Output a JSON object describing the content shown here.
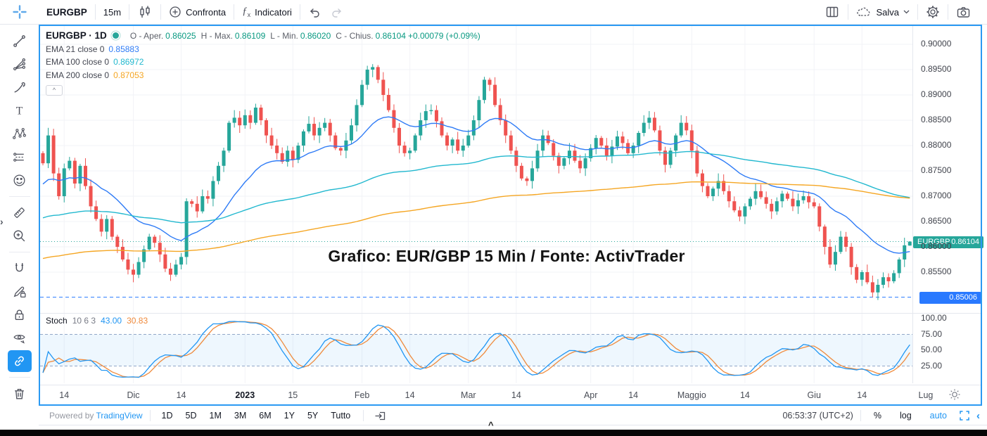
{
  "top_toolbar": {
    "symbol": "EURGBP",
    "interval": "15m",
    "compare": "Confronta",
    "indicators": "Indicatori",
    "save": "Salva"
  },
  "icons": {
    "top": [
      "crosshair-logo",
      "candles-interval",
      "compare-plus",
      "fx-indicators",
      "undo",
      "redo",
      "layout-grid",
      "cloud-save",
      "chevron-down",
      "settings-gear",
      "camera-snapshot"
    ],
    "left": [
      "trend-line",
      "fib-fan",
      "brush",
      "text-tool",
      "xabcd-pattern",
      "forecast-tools",
      "emoji",
      "ruler-measure",
      "zoom-in",
      "magnet",
      "drawing-edit-lock",
      "lock-all",
      "hide-drawings-eye",
      "sync-drawings-link",
      "trash"
    ],
    "misc": [
      "session-sun",
      "goto-date",
      "fullscreen-brackets",
      "collapse-chevron-left",
      "panel-expand-chevron-right",
      "legend-collapse-caret"
    ]
  },
  "chart": {
    "legend": {
      "symbol": "EURGBP",
      "sep": "·",
      "interval": "1D",
      "o_label": "O - Aper.",
      "o": "0.86025",
      "h_label": "H - Max.",
      "h": "0.86109",
      "l_label": "L - Min.",
      "l": "0.86020",
      "c_label": "C - Chius.",
      "c": "0.86104",
      "change": "+0.00079 (+0.09%)"
    },
    "emas": [
      {
        "label": "EMA 21 close 0",
        "value": "0.85883",
        "color": "#2e7bf6"
      },
      {
        "label": "EMA 100 close 0",
        "value": "0.86972",
        "color": "#22b8cf"
      },
      {
        "label": "EMA 200 close 0",
        "value": "0.87053",
        "color": "#f5a623"
      }
    ],
    "stoch_legend": {
      "name": "Stoch",
      "params": "10 6 3",
      "k": "43.00",
      "d": "30.83"
    },
    "collapse_caret": "^",
    "annotation": "Grafico: EUR/GBP 15 Min / Fonte: ActivTrader",
    "price_tag": {
      "symbol": "EURGBP",
      "value": "0.86104"
    },
    "alert_tag": {
      "value": "0.85006"
    },
    "stoch_axis": [
      "100.00",
      "75.00",
      "50.00",
      "25.00"
    ]
  },
  "chart_data": {
    "type": "candlestick",
    "symbol": "EURGBP",
    "interval": "1D",
    "ohlc_last": {
      "o": 0.86025,
      "h": 0.86109,
      "l": 0.8602,
      "c": 0.86104
    },
    "closes": [
      0.8765,
      0.882,
      0.8745,
      0.87,
      0.8755,
      0.877,
      0.8725,
      0.876,
      0.872,
      0.868,
      0.8655,
      0.863,
      0.8655,
      0.862,
      0.86,
      0.8575,
      0.8555,
      0.8545,
      0.857,
      0.8595,
      0.862,
      0.8608,
      0.8585,
      0.8557,
      0.8545,
      0.8565,
      0.858,
      0.869,
      0.8685,
      0.867,
      0.87,
      0.8695,
      0.873,
      0.876,
      0.879,
      0.8845,
      0.8855,
      0.884,
      0.886,
      0.8845,
      0.8875,
      0.885,
      0.882,
      0.88,
      0.8785,
      0.8768,
      0.879,
      0.8772,
      0.88,
      0.8828,
      0.8843,
      0.882,
      0.8835,
      0.8845,
      0.882,
      0.8795,
      0.879,
      0.881,
      0.884,
      0.888,
      0.892,
      0.895,
      0.8955,
      0.893,
      0.89,
      0.887,
      0.8835,
      0.88,
      0.8785,
      0.879,
      0.882,
      0.885,
      0.8868,
      0.887,
      0.8848,
      0.882,
      0.88,
      0.8812,
      0.879,
      0.88,
      0.882,
      0.885,
      0.889,
      0.893,
      0.892,
      0.888,
      0.885,
      0.882,
      0.879,
      0.876,
      0.8735,
      0.873,
      0.8755,
      0.879,
      0.882,
      0.8805,
      0.878,
      0.876,
      0.8775,
      0.879,
      0.877,
      0.8755,
      0.8775,
      0.8795,
      0.8815,
      0.88,
      0.878,
      0.8798,
      0.8818,
      0.8805,
      0.8785,
      0.88,
      0.8825,
      0.8845,
      0.8855,
      0.883,
      0.879,
      0.8762,
      0.879,
      0.882,
      0.8845,
      0.883,
      0.879,
      0.8745,
      0.872,
      0.87,
      0.8715,
      0.873,
      0.871,
      0.869,
      0.8672,
      0.866,
      0.868,
      0.8695,
      0.871,
      0.8698,
      0.8685,
      0.867,
      0.869,
      0.8705,
      0.8695,
      0.868,
      0.8692,
      0.87,
      0.8688,
      0.868,
      0.864,
      0.86,
      0.8565,
      0.859,
      0.862,
      0.86,
      0.856,
      0.8535,
      0.855,
      0.853,
      0.851,
      0.8525,
      0.854,
      0.8532,
      0.8548,
      0.8575,
      0.8603,
      0.86104
    ],
    "y_ticks": [
      0.9,
      0.895,
      0.89,
      0.885,
      0.88,
      0.875,
      0.87,
      0.865,
      0.86,
      0.855
    ],
    "ylim": [
      0.8469,
      0.9035
    ],
    "time_labels": [
      {
        "t": "14",
        "i": 4
      },
      {
        "t": "Dic",
        "i": 17
      },
      {
        "t": "14",
        "i": 26
      },
      {
        "t": "2023",
        "i": 38,
        "bold": true
      },
      {
        "t": "15",
        "i": 47
      },
      {
        "t": "Feb",
        "i": 60
      },
      {
        "t": "14",
        "i": 69
      },
      {
        "t": "Mar",
        "i": 80
      },
      {
        "t": "14",
        "i": 89
      },
      {
        "t": "Apr",
        "i": 103
      },
      {
        "t": "14",
        "i": 111
      },
      {
        "t": "Maggio",
        "i": 122
      },
      {
        "t": "14",
        "i": 132
      },
      {
        "t": "Giu",
        "i": 145
      },
      {
        "t": "14",
        "i": 154
      },
      {
        "t": "Lug",
        "i": 166
      }
    ],
    "price_lines": [
      {
        "value": 0.86104,
        "style": "dotted",
        "color": "#26a69a"
      },
      {
        "value": 0.85006,
        "style": "dashed",
        "color": "#2979ff"
      }
    ],
    "overlays": [
      {
        "name": "EMA 21",
        "period": 21,
        "seed": 0.872,
        "color": "#2e7bf6"
      },
      {
        "name": "EMA 100",
        "period": 100,
        "seed": 0.8655,
        "color": "#22b8cf"
      },
      {
        "name": "EMA 200",
        "period": 200,
        "seed": 0.8575,
        "color": "#f5a623"
      }
    ],
    "stoch": {
      "k_period": 10,
      "k_smooth": 6,
      "d_smooth": 3,
      "k_last": 43.0,
      "d_last": 30.83,
      "bands": [
        75,
        25
      ],
      "k_color": "#2196f3",
      "d_color": "#ef8a3c"
    },
    "colors": {
      "up": "#26a69a",
      "down": "#ef5350",
      "grid": "#f2f3f7",
      "accent": "#2196f3"
    }
  },
  "bottom_toolbar": {
    "powered_by": "Powered by",
    "brand": "TradingView",
    "ranges": [
      "1D",
      "5D",
      "1M",
      "3M",
      "6M",
      "1Y",
      "5Y",
      "Tutto"
    ],
    "clock": "06:53:37 (UTC+2)",
    "percent": "%",
    "log": "log",
    "auto": "auto",
    "collapse": "‹"
  },
  "misc": {
    "panel_expand": "›",
    "strip_caret": "^"
  }
}
